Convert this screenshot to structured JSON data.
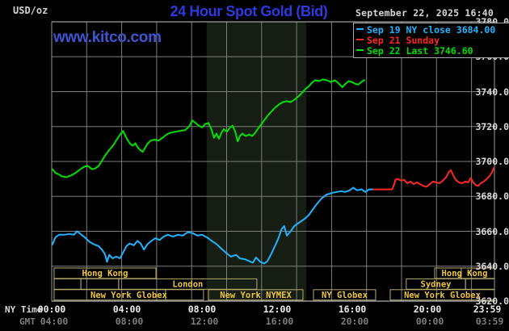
{
  "header": {
    "unit_label": "USD/oz",
    "title": "24 Hour Spot Gold (Bid)",
    "date_line": "September 22, 2025 16:40",
    "watermark": "www.kitco.com"
  },
  "legend": {
    "items": [
      {
        "label": "Sep 19 NY close 3684.00",
        "color": "#1fb4ff"
      },
      {
        "label": "Sep 21 Sunday",
        "color": "#ff2626"
      },
      {
        "label": "Sep 22 Last 3746.60",
        "color": "#00e000"
      }
    ]
  },
  "colors": {
    "background": "#000000",
    "grid": "#7e7e7e",
    "axis_line": "#dcdcdc",
    "session_box_border": "#b7aa6b",
    "session_label": "#ecc63e",
    "nymex_band_fill": "#161d12",
    "title_blue": "#2c3ae0",
    "watermark_blue": "#3e55d2"
  },
  "chart_data": {
    "type": "line",
    "title": "24 Hour Spot Gold (Bid)",
    "ylabel": "USD/oz",
    "xlim_hours": [
      0,
      24
    ],
    "ylim": [
      3620,
      3780
    ],
    "y_tick_step": 20,
    "grid": true,
    "legend_position": "top-right",
    "y_tick_labels": [
      "3780.0",
      "3760.0",
      "3740.0",
      "3720.0",
      "3700.0",
      "3680.0",
      "3660.0",
      "3640.0",
      "3620.0"
    ],
    "axis_row_captions": [
      "NY Time",
      "GMT"
    ],
    "x_tick_labels_ny_time": [
      "00:00",
      "04:00",
      "08:00",
      "12:00",
      "16:00",
      "20:00",
      "23:59"
    ],
    "x_tick_labels_gmt": [
      "04:00",
      "08:00",
      "12:00",
      "16:00",
      "20:00",
      "00:00",
      "03:59"
    ],
    "nymex_session_band_hours": [
      8.4,
      13.8
    ],
    "market_session_rows": [
      [
        {
          "label": "Hong Kong",
          "start_h": 0.13,
          "end_h": 5.65
        },
        {
          "label": "Hong Kong",
          "start_h": 20.76,
          "end_h": 24,
          "dividers": [
            22.2
          ]
        }
      ],
      [
        {
          "label": "",
          "start_h": 0.13,
          "end_h": 1.58
        },
        {
          "label": "",
          "start_h": 1.58,
          "end_h": 3.63
        },
        {
          "label": "London",
          "start_h": 3.63,
          "end_h": 11.12
        },
        {
          "label": "Sydney",
          "start_h": 19.22,
          "end_h": 22.43
        },
        {
          "label": "",
          "start_h": 22.43,
          "end_h": 24
        }
      ],
      [
        {
          "label": "New York Globex",
          "start_h": 0.13,
          "end_h": 8.23,
          "dividers": [
            6.17
          ]
        },
        {
          "label": "New York NYMEX",
          "start_h": 8.5,
          "end_h": 13.62
        },
        {
          "label": "NY Globex",
          "start_h": 14.19,
          "end_h": 17.56
        },
        {
          "label": "New York Globex",
          "start_h": 18.35,
          "end_h": 24
        }
      ]
    ],
    "series": [
      {
        "name": "Sep 19 NY close 3684.00",
        "color": "#1fb4ff",
        "points": [
          [
            0.04,
            3652.5
          ],
          [
            0.2,
            3656.5
          ],
          [
            0.4,
            3658
          ],
          [
            0.7,
            3658
          ],
          [
            0.95,
            3658.5
          ],
          [
            1.2,
            3658
          ],
          [
            1.38,
            3660
          ],
          [
            1.55,
            3658.5
          ],
          [
            1.8,
            3656.5
          ],
          [
            2.05,
            3654
          ],
          [
            2.3,
            3652.5
          ],
          [
            2.55,
            3651.5
          ],
          [
            2.72,
            3649.5
          ],
          [
            2.88,
            3647
          ],
          [
            3.0,
            3642.5
          ],
          [
            3.12,
            3646.5
          ],
          [
            3.3,
            3644.5
          ],
          [
            3.5,
            3645.5
          ],
          [
            3.7,
            3644.5
          ],
          [
            3.88,
            3648
          ],
          [
            4.05,
            3651.5
          ],
          [
            4.22,
            3653
          ],
          [
            4.45,
            3652
          ],
          [
            4.65,
            3654.5
          ],
          [
            4.82,
            3653
          ],
          [
            5.0,
            3649.5
          ],
          [
            5.18,
            3652.5
          ],
          [
            5.4,
            3654.5
          ],
          [
            5.62,
            3656
          ],
          [
            5.85,
            3655
          ],
          [
            6.07,
            3657
          ],
          [
            6.3,
            3658
          ],
          [
            6.58,
            3657
          ],
          [
            6.85,
            3658
          ],
          [
            7.1,
            3657.5
          ],
          [
            7.38,
            3659.5
          ],
          [
            7.63,
            3659
          ],
          [
            7.9,
            3657.5
          ],
          [
            8.15,
            3658
          ],
          [
            8.42,
            3656.5
          ],
          [
            8.68,
            3654.5
          ],
          [
            8.95,
            3652.5
          ],
          [
            9.2,
            3650
          ],
          [
            9.47,
            3647.5
          ],
          [
            9.72,
            3645.5
          ],
          [
            10.0,
            3646.5
          ],
          [
            10.2,
            3644.5
          ],
          [
            10.47,
            3644
          ],
          [
            10.7,
            3643
          ],
          [
            10.9,
            3642
          ],
          [
            11.08,
            3645
          ],
          [
            11.3,
            3642.5
          ],
          [
            11.52,
            3641.5
          ],
          [
            11.7,
            3643
          ],
          [
            11.9,
            3647
          ],
          [
            12.1,
            3651.5
          ],
          [
            12.27,
            3655.5
          ],
          [
            12.45,
            3661
          ],
          [
            12.6,
            3663
          ],
          [
            12.75,
            3657.5
          ],
          [
            12.95,
            3660
          ],
          [
            13.15,
            3663
          ],
          [
            13.35,
            3664.5
          ],
          [
            13.55,
            3666
          ],
          [
            13.75,
            3667.5
          ],
          [
            13.95,
            3669.5
          ],
          [
            14.15,
            3672.5
          ],
          [
            14.4,
            3676
          ],
          [
            14.65,
            3679
          ],
          [
            14.9,
            3681
          ],
          [
            15.2,
            3682
          ],
          [
            15.45,
            3682.5
          ],
          [
            15.7,
            3683
          ],
          [
            15.9,
            3682.5
          ],
          [
            16.15,
            3683.5
          ],
          [
            16.35,
            3685
          ],
          [
            16.55,
            3683.5
          ],
          [
            16.8,
            3684
          ],
          [
            17.0,
            3682.5
          ],
          [
            17.2,
            3684
          ],
          [
            17.45,
            3684
          ]
        ]
      },
      {
        "name": "Sep 21 Sunday",
        "color": "#ff2626",
        "points": [
          [
            17.45,
            3684
          ],
          [
            17.8,
            3684
          ],
          [
            18.15,
            3684
          ],
          [
            18.45,
            3684
          ],
          [
            18.55,
            3686.5
          ],
          [
            18.63,
            3689.5
          ],
          [
            18.75,
            3690
          ],
          [
            18.93,
            3689
          ],
          [
            19.1,
            3689.5
          ],
          [
            19.28,
            3687.5
          ],
          [
            19.45,
            3688.5
          ],
          [
            19.62,
            3687
          ],
          [
            19.8,
            3688
          ],
          [
            19.97,
            3687
          ],
          [
            20.15,
            3686
          ],
          [
            20.32,
            3685.5
          ],
          [
            20.5,
            3687
          ],
          [
            20.67,
            3688.5
          ],
          [
            20.85,
            3688
          ],
          [
            21.02,
            3687.5
          ],
          [
            21.2,
            3689
          ],
          [
            21.38,
            3691
          ],
          [
            21.53,
            3694
          ],
          [
            21.63,
            3695
          ],
          [
            21.77,
            3692
          ],
          [
            21.9,
            3689.5
          ],
          [
            22.07,
            3688
          ],
          [
            22.25,
            3687.5
          ],
          [
            22.42,
            3688.5
          ],
          [
            22.58,
            3688
          ],
          [
            22.72,
            3690.5
          ],
          [
            22.85,
            3688
          ],
          [
            22.98,
            3686.5
          ],
          [
            23.12,
            3686
          ],
          [
            23.25,
            3687.5
          ],
          [
            23.42,
            3688.5
          ],
          [
            23.58,
            3690
          ],
          [
            23.72,
            3691.5
          ],
          [
            23.85,
            3693.5
          ],
          [
            23.98,
            3696.5
          ]
        ]
      },
      {
        "name": "Sep 22 Last 3746.60",
        "color": "#00e000",
        "points": [
          [
            0.04,
            3695.5
          ],
          [
            0.2,
            3693.5
          ],
          [
            0.4,
            3692.5
          ],
          [
            0.55,
            3691.5
          ],
          [
            0.8,
            3691
          ],
          [
            1.05,
            3692
          ],
          [
            1.3,
            3693.5
          ],
          [
            1.55,
            3695.5
          ],
          [
            1.75,
            3697
          ],
          [
            1.95,
            3697.5
          ],
          [
            2.18,
            3695.5
          ],
          [
            2.35,
            3696
          ],
          [
            2.55,
            3697.5
          ],
          [
            2.7,
            3700
          ],
          [
            2.9,
            3703.5
          ],
          [
            3.12,
            3706.5
          ],
          [
            3.35,
            3709.5
          ],
          [
            3.55,
            3713
          ],
          [
            3.75,
            3716
          ],
          [
            3.87,
            3717.5
          ],
          [
            4.0,
            3714.5
          ],
          [
            4.13,
            3712
          ],
          [
            4.27,
            3710
          ],
          [
            4.4,
            3709
          ],
          [
            4.53,
            3710.5
          ],
          [
            4.67,
            3708
          ],
          [
            4.8,
            3706.5
          ],
          [
            4.93,
            3705.5
          ],
          [
            5.05,
            3707.5
          ],
          [
            5.18,
            3710
          ],
          [
            5.37,
            3712
          ],
          [
            5.58,
            3712.5
          ],
          [
            5.8,
            3712
          ],
          [
            6.0,
            3713.5
          ],
          [
            6.23,
            3715.5
          ],
          [
            6.45,
            3716.5
          ],
          [
            6.7,
            3717
          ],
          [
            6.97,
            3717.5
          ],
          [
            7.23,
            3718
          ],
          [
            7.45,
            3720
          ],
          [
            7.62,
            3723.5
          ],
          [
            7.8,
            3722
          ],
          [
            7.98,
            3720.5
          ],
          [
            8.15,
            3719.5
          ],
          [
            8.32,
            3721.5
          ],
          [
            8.5,
            3722
          ],
          [
            8.67,
            3718
          ],
          [
            8.8,
            3713.5
          ],
          [
            8.93,
            3716
          ],
          [
            9.07,
            3713
          ],
          [
            9.2,
            3716.5
          ],
          [
            9.33,
            3718.5
          ],
          [
            9.5,
            3717
          ],
          [
            9.67,
            3719.5
          ],
          [
            9.8,
            3720.5
          ],
          [
            9.95,
            3717
          ],
          [
            10.08,
            3711.5
          ],
          [
            10.2,
            3714.5
          ],
          [
            10.33,
            3716
          ],
          [
            10.52,
            3714.5
          ],
          [
            10.7,
            3715.5
          ],
          [
            10.87,
            3714.5
          ],
          [
            11.03,
            3716.5
          ],
          [
            11.2,
            3719
          ],
          [
            11.38,
            3721.5
          ],
          [
            11.55,
            3724
          ],
          [
            11.73,
            3726.5
          ],
          [
            11.9,
            3728.5
          ],
          [
            12.08,
            3730.5
          ],
          [
            12.3,
            3732.5
          ],
          [
            12.52,
            3734
          ],
          [
            12.73,
            3734.5
          ],
          [
            12.95,
            3734
          ],
          [
            13.18,
            3735.5
          ],
          [
            13.4,
            3737.5
          ],
          [
            13.58,
            3739.5
          ],
          [
            13.75,
            3741.5
          ],
          [
            13.93,
            3743
          ],
          [
            14.1,
            3745
          ],
          [
            14.28,
            3746.5
          ],
          [
            14.5,
            3746
          ],
          [
            14.7,
            3747
          ],
          [
            14.92,
            3746.5
          ],
          [
            15.13,
            3745.5
          ],
          [
            15.35,
            3746.5
          ],
          [
            15.58,
            3744.5
          ],
          [
            15.75,
            3742.5
          ],
          [
            15.92,
            3744.5
          ],
          [
            16.1,
            3746
          ],
          [
            16.28,
            3745.5
          ],
          [
            16.45,
            3744.5
          ],
          [
            16.62,
            3744
          ],
          [
            16.78,
            3745.5
          ],
          [
            16.95,
            3746.6
          ]
        ]
      }
    ]
  }
}
